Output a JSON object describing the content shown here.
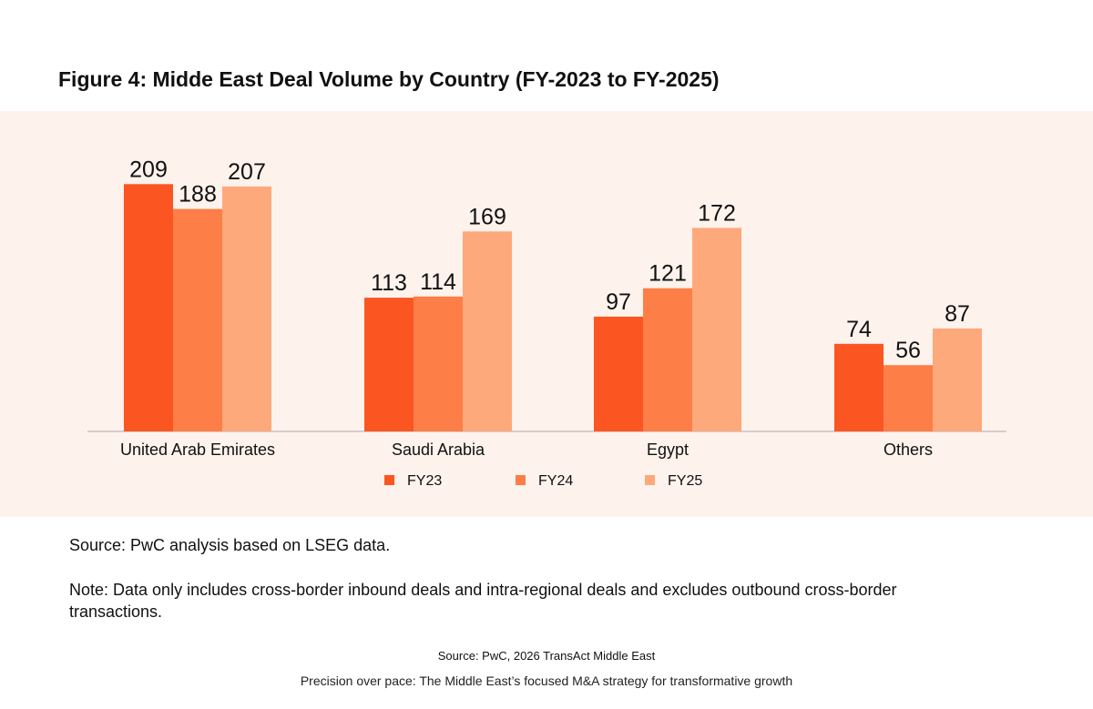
{
  "figure": {
    "title": "Figure 4: Midde East Deal Volume by Country (FY-2023 to FY-2025)"
  },
  "chart_data": {
    "type": "bar",
    "title": "Figure 4: Midde East Deal Volume by Country (FY-2023 to FY-2025)",
    "xlabel": "",
    "ylabel": "",
    "ylim": [
      0,
      220
    ],
    "grid": false,
    "legend": "bottom",
    "categories": [
      "United Arab Emirates",
      "Saudi Arabia",
      "Egypt",
      "Others"
    ],
    "series": [
      {
        "name": "FY23",
        "color": "#fb5522",
        "values": [
          209,
          113,
          97,
          74
        ]
      },
      {
        "name": "FY24",
        "color": "#fd7e47",
        "values": [
          188,
          114,
          121,
          56
        ]
      },
      {
        "name": "FY25",
        "color": "#fea97b",
        "values": [
          207,
          169,
          172,
          87
        ]
      }
    ]
  },
  "notes": {
    "source": "Source: PwC analysis based on LSEG data.",
    "note": "Note: Data only includes cross-border inbound deals and intra-regional deals and excludes outbound cross-border transactions."
  },
  "footer": {
    "source": "Source: PwC, 2026 TransAct Middle East",
    "tagline": "Precision over pace: The Middle East’s focused M&A strategy for transformative growth"
  }
}
